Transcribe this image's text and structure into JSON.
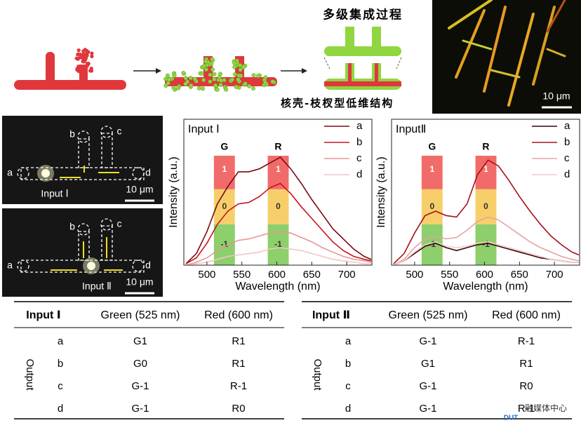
{
  "figure": {
    "process_title": "多级集成过程",
    "structure_title": "核壳-枝杈型低维结构",
    "scale": "10 μm"
  },
  "micrographs": [
    {
      "labels": [
        "a",
        "b",
        "c",
        "d"
      ],
      "input": "Input Ⅰ",
      "scale": "10 μm"
    },
    {
      "labels": [
        "a",
        "b",
        "c",
        "d"
      ],
      "input": "Input Ⅱ",
      "scale": "10 μm"
    }
  ],
  "chart_data": [
    {
      "type": "line",
      "title": "Input Ⅰ",
      "x_label": "Wavelength (nm)",
      "y_label": "Intensity (a.u.)",
      "x": [
        470,
        485,
        500,
        515,
        530,
        545,
        560,
        575,
        590,
        605,
        620,
        635,
        650,
        665,
        680,
        695,
        710,
        725,
        735
      ],
      "xlim": [
        467,
        736
      ],
      "xticks": [
        500,
        550,
        600,
        650,
        700
      ],
      "ylim": [
        0,
        1
      ],
      "series": [
        {
          "name": "a",
          "color": "#7a0a14",
          "values": [
            0.01,
            0.08,
            0.23,
            0.42,
            0.54,
            0.64,
            0.64,
            0.66,
            0.7,
            0.74,
            0.66,
            0.56,
            0.45,
            0.35,
            0.25,
            0.18,
            0.11,
            0.06,
            0.04
          ]
        },
        {
          "name": "b",
          "color": "#c8141e",
          "values": [
            0.01,
            0.05,
            0.15,
            0.28,
            0.37,
            0.42,
            0.43,
            0.47,
            0.53,
            0.56,
            0.49,
            0.4,
            0.32,
            0.24,
            0.16,
            0.1,
            0.06,
            0.04,
            0.03
          ]
        },
        {
          "name": "c",
          "color": "#e99595",
          "values": [
            0.0,
            0.02,
            0.05,
            0.1,
            0.14,
            0.17,
            0.18,
            0.2,
            0.22,
            0.23,
            0.22,
            0.19,
            0.16,
            0.12,
            0.09,
            0.06,
            0.04,
            0.03,
            0.02
          ]
        },
        {
          "name": "d",
          "color": "#f3c6c6",
          "values": [
            0.0,
            0.01,
            0.02,
            0.04,
            0.06,
            0.07,
            0.08,
            0.09,
            0.11,
            0.12,
            0.11,
            0.1,
            0.08,
            0.06,
            0.04,
            0.03,
            0.02,
            0.01,
            0.01
          ]
        }
      ],
      "bands": [
        {
          "label": "G",
          "center": 525
        },
        {
          "label": "R",
          "center": 602
        }
      ],
      "levels": [
        "1",
        "0",
        "-1"
      ],
      "level_colors": [
        "#f26b6b",
        "#f7cf6a",
        "#8dcf6a"
      ],
      "legend": "upper right"
    },
    {
      "type": "line",
      "title": "InputⅡ",
      "x_label": "Wavelength (nm)",
      "y_label": "Intensity (a.u.)",
      "x": [
        470,
        485,
        500,
        515,
        530,
        545,
        560,
        575,
        590,
        605,
        620,
        635,
        650,
        665,
        680,
        695,
        710,
        725,
        735
      ],
      "xlim": [
        467,
        736
      ],
      "xticks": [
        500,
        550,
        600,
        650,
        700
      ],
      "ylim": [
        0,
        1
      ],
      "series": [
        {
          "name": "a",
          "color": "#3a0306",
          "values": [
            0.0,
            0.03,
            0.08,
            0.13,
            0.15,
            0.12,
            0.1,
            0.12,
            0.14,
            0.15,
            0.13,
            0.11,
            0.09,
            0.07,
            0.05,
            0.04,
            0.03,
            0.02,
            0.02
          ]
        },
        {
          "name": "b",
          "color": "#a8101e",
          "values": [
            0.01,
            0.08,
            0.22,
            0.34,
            0.37,
            0.34,
            0.33,
            0.42,
            0.62,
            0.72,
            0.68,
            0.58,
            0.47,
            0.37,
            0.28,
            0.2,
            0.14,
            0.09,
            0.07
          ]
        },
        {
          "name": "c",
          "color": "#e8a2a2",
          "values": [
            0.0,
            0.04,
            0.12,
            0.18,
            0.2,
            0.18,
            0.19,
            0.24,
            0.3,
            0.33,
            0.31,
            0.26,
            0.21,
            0.16,
            0.12,
            0.09,
            0.06,
            0.04,
            0.03
          ]
        },
        {
          "name": "d",
          "color": "#f2cbcb",
          "values": [
            0.0,
            0.03,
            0.09,
            0.14,
            0.16,
            0.13,
            0.12,
            0.13,
            0.15,
            0.16,
            0.14,
            0.12,
            0.1,
            0.08,
            0.06,
            0.04,
            0.03,
            0.02,
            0.02
          ]
        }
      ],
      "bands": [
        {
          "label": "G",
          "center": 525
        },
        {
          "label": "R",
          "center": 602
        }
      ],
      "levels": [
        "1",
        "0",
        "-1"
      ],
      "level_colors": [
        "#f26b6b",
        "#f7cf6a",
        "#8dcf6a"
      ],
      "legend": "upper right"
    }
  ],
  "tables": [
    {
      "header": [
        "Input Ⅰ",
        "Green (525 nm)",
        "Red (600 nm)"
      ],
      "group_label": "Output",
      "rows": [
        [
          "a",
          "G1",
          "R1"
        ],
        [
          "b",
          "G0",
          "R1"
        ],
        [
          "c",
          "G-1",
          "R-1"
        ],
        [
          "d",
          "G-1",
          "R0"
        ]
      ]
    },
    {
      "header": [
        "Input Ⅱ",
        "Green (525 nm)",
        "Red (600 nm)"
      ],
      "group_label": "Output",
      "rows": [
        [
          "a",
          "G-1",
          "R-1"
        ],
        [
          "b",
          "G1",
          "R1"
        ],
        [
          "c",
          "G-1",
          "R0"
        ],
        [
          "d",
          "G-1",
          "R-1"
        ]
      ]
    }
  ],
  "watermark": {
    "text": "融媒体中心",
    "logo": "DUT"
  }
}
